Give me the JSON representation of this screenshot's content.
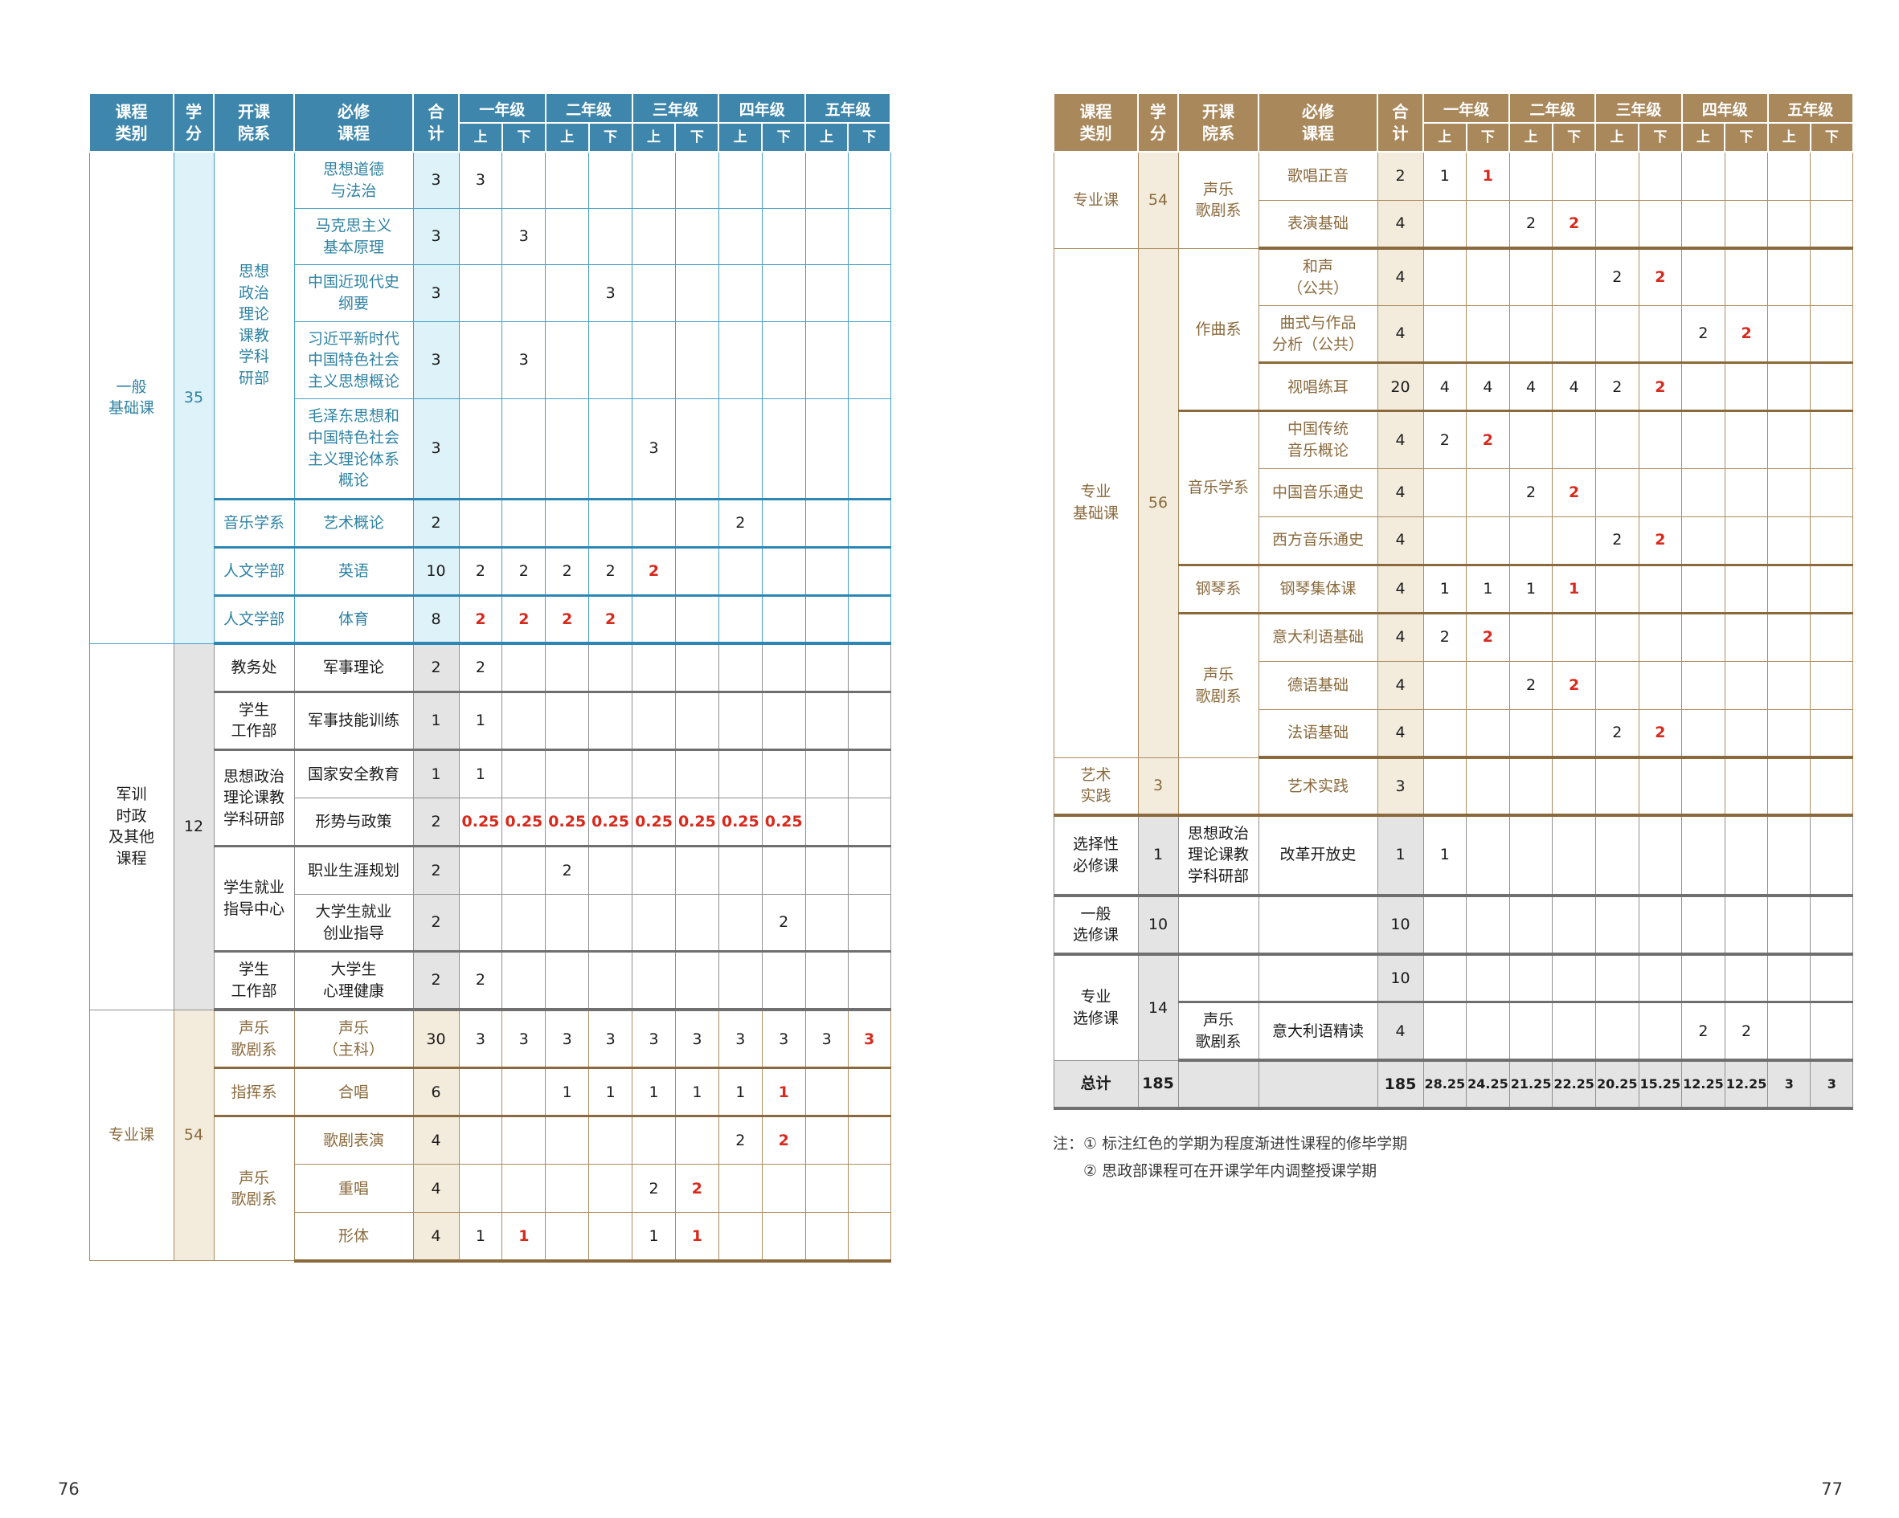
{
  "page": {
    "left_number": "76",
    "right_number": "77"
  },
  "colors": {
    "left_header_blue": "#3e86ac",
    "right_header_brown": "#a9885c",
    "progressive_red": "#d8291d",
    "cyan_tint": "#def2f9",
    "gray_tint": "#e4e4e4",
    "cream_tint": "#f3ecdc"
  },
  "header": {
    "col_category": "课程\n类别",
    "col_credits": "学\n分",
    "col_dept": "开课\n院系",
    "col_course": "必修\n课程",
    "col_total": "合\n计",
    "years": [
      "一年级",
      "二年级",
      "三年级",
      "四年级",
      "五年级"
    ],
    "sem_first": "上",
    "sem_second": "下"
  },
  "left_table": {
    "sections": [
      {
        "category": "一般\n基础课",
        "credits": "35",
        "theme": "cyan",
        "rows": [
          {
            "dept": "思想\n政治\n理论\n课教\n学科\n研部",
            "dept_rowspan": 5,
            "course": "思想道德\n与法治",
            "total": "3",
            "cells": [
              "3",
              "",
              "",
              "",
              "",
              "",
              "",
              "",
              "",
              ""
            ]
          },
          {
            "dept": null,
            "course": "马克思主义\n基本原理",
            "total": "3",
            "cells": [
              "",
              "3",
              "",
              "",
              "",
              "",
              "",
              "",
              "",
              ""
            ]
          },
          {
            "dept": null,
            "course": "中国近现代史\n纲要",
            "total": "3",
            "cells": [
              "",
              "",
              "",
              "3",
              "",
              "",
              "",
              "",
              "",
              ""
            ]
          },
          {
            "dept": null,
            "course": "习近平新时代\n中国特色社会\n主义思想概论",
            "total": "3",
            "cells": [
              "",
              "3",
              "",
              "",
              "",
              "",
              "",
              "",
              "",
              ""
            ]
          },
          {
            "dept": null,
            "course": "毛泽东思想和\n中国特色社会\n主义理论体系\n概论",
            "total": "3",
            "cells": [
              "",
              "",
              "",
              "",
              "3",
              "",
              "",
              "",
              "",
              ""
            ]
          },
          {
            "dept": "音乐学系",
            "course": "艺术概论",
            "total": "2",
            "cells": [
              "",
              "",
              "",
              "",
              "",
              "",
              "2",
              "",
              "",
              ""
            ],
            "sep": true
          },
          {
            "dept": "人文学部",
            "course": "英语",
            "total": "10",
            "cells": [
              "2",
              "2",
              "2",
              "2",
              "2*",
              "",
              "",
              "",
              "",
              ""
            ],
            "sep": true
          },
          {
            "dept": "人文学部",
            "course": "体育",
            "total": "8",
            "cells": [
              "2*",
              "2*",
              "2*",
              "2*",
              "",
              "",
              "",
              "",
              "",
              ""
            ],
            "sep": true
          }
        ]
      },
      {
        "category": "军训\n时政\n及其他\n课程",
        "credits": "12",
        "theme": "gray",
        "rows": [
          {
            "dept": "教务处",
            "course": "军事理论",
            "total": "2",
            "cells": [
              "2",
              "",
              "",
              "",
              "",
              "",
              "",
              "",
              "",
              ""
            ]
          },
          {
            "dept": "学生\n工作部",
            "course": "军事技能训练",
            "total": "1",
            "cells": [
              "1",
              "",
              "",
              "",
              "",
              "",
              "",
              "",
              "",
              ""
            ],
            "sep": true
          },
          {
            "dept": "思想政治\n理论课教\n学科研部",
            "dept_rowspan": 2,
            "course": "国家安全教育",
            "total": "1",
            "cells": [
              "1",
              "",
              "",
              "",
              "",
              "",
              "",
              "",
              "",
              ""
            ],
            "sep": true
          },
          {
            "dept": null,
            "course": "形势与政策",
            "total": "2",
            "cells": [
              "0.25*",
              "0.25*",
              "0.25*",
              "0.25*",
              "0.25*",
              "0.25*",
              "0.25*",
              "0.25*",
              "",
              ""
            ]
          },
          {
            "dept": "学生就业\n指导中心",
            "dept_rowspan": 2,
            "course": "职业生涯规划",
            "total": "2",
            "cells": [
              "",
              "",
              "2",
              "",
              "",
              "",
              "",
              "",
              "",
              ""
            ],
            "sep": true
          },
          {
            "dept": null,
            "course": "大学生就业\n创业指导",
            "total": "2",
            "cells": [
              "",
              "",
              "",
              "",
              "",
              "",
              "",
              "2",
              "",
              ""
            ]
          },
          {
            "dept": "学生\n工作部",
            "course": "大学生\n心理健康",
            "total": "2",
            "cells": [
              "2",
              "",
              "",
              "",
              "",
              "",
              "",
              "",
              "",
              ""
            ],
            "sep": true
          }
        ]
      },
      {
        "category": "专业课",
        "credits": "54",
        "theme": "cream",
        "rows": [
          {
            "dept": "声乐\n歌剧系",
            "course": "声乐\n（主科）",
            "total": "30",
            "cells": [
              "3",
              "3",
              "3",
              "3",
              "3",
              "3",
              "3",
              "3",
              "3",
              "3*"
            ]
          },
          {
            "dept": "指挥系",
            "course": "合唱",
            "total": "6",
            "cells": [
              "",
              "",
              "1",
              "1",
              "1",
              "1",
              "1",
              "1*",
              "",
              ""
            ],
            "sep": true
          },
          {
            "dept": "声乐\n歌剧系",
            "dept_rowspan": 3,
            "course": "歌剧表演",
            "total": "4",
            "cells": [
              "",
              "",
              "",
              "",
              "",
              "",
              "2",
              "2*",
              "",
              ""
            ],
            "sep": true
          },
          {
            "dept": null,
            "course": "重唱",
            "total": "4",
            "cells": [
              "",
              "",
              "",
              "",
              "2",
              "2*",
              "",
              "",
              "",
              ""
            ]
          },
          {
            "dept": null,
            "course": "形体",
            "total": "4",
            "cells": [
              "1",
              "1*",
              "",
              "",
              "1",
              "1*",
              "",
              "",
              "",
              ""
            ]
          }
        ]
      }
    ]
  },
  "right_table": {
    "sections": [
      {
        "category": "专业课",
        "credits": "54",
        "theme": "cream",
        "rows": [
          {
            "dept": "声乐\n歌剧系",
            "dept_rowspan": 2,
            "course": "歌唱正音",
            "total": "2",
            "cells": [
              "1",
              "1*",
              "",
              "",
              "",
              "",
              "",
              "",
              "",
              ""
            ]
          },
          {
            "dept": null,
            "course": "表演基础",
            "total": "4",
            "cells": [
              "",
              "",
              "2",
              "2*",
              "",
              "",
              "",
              "",
              "",
              ""
            ]
          }
        ]
      },
      {
        "category": "专业\n基础课",
        "credits": "56",
        "theme": "cream",
        "rows": [
          {
            "dept": "作曲系",
            "dept_rowspan": 3,
            "course": "和声\n（公共）",
            "total": "4",
            "cells": [
              "",
              "",
              "",
              "",
              "2",
              "2*",
              "",
              "",
              "",
              ""
            ]
          },
          {
            "dept": null,
            "course": "曲式与作品\n分析（公共）",
            "total": "4",
            "cells": [
              "",
              "",
              "",
              "",
              "",
              "",
              "2",
              "2*",
              "",
              ""
            ]
          },
          {
            "dept": null,
            "course": "视唱练耳",
            "total": "20",
            "cells": [
              "4",
              "4",
              "4",
              "4",
              "2",
              "2*",
              "",
              "",
              "",
              ""
            ],
            "sep": true
          },
          {
            "dept": "音乐学系",
            "dept_rowspan": 3,
            "course": "中国传统\n音乐概论",
            "total": "4",
            "cells": [
              "2",
              "2*",
              "",
              "",
              "",
              "",
              "",
              "",
              "",
              ""
            ],
            "sep": true
          },
          {
            "dept": null,
            "course": "中国音乐通史",
            "total": "4",
            "cells": [
              "",
              "",
              "2",
              "2*",
              "",
              "",
              "",
              "",
              "",
              ""
            ]
          },
          {
            "dept": null,
            "course": "西方音乐通史",
            "total": "4",
            "cells": [
              "",
              "",
              "",
              "",
              "2",
              "2*",
              "",
              "",
              "",
              ""
            ]
          },
          {
            "dept": "钢琴系",
            "course": "钢琴集体课",
            "total": "4",
            "cells": [
              "1",
              "1",
              "1",
              "1*",
              "",
              "",
              "",
              "",
              "",
              ""
            ],
            "sep": true
          },
          {
            "dept": "声乐\n歌剧系",
            "dept_rowspan": 3,
            "course": "意大利语基础",
            "total": "4",
            "cells": [
              "2",
              "2*",
              "",
              "",
              "",
              "",
              "",
              "",
              "",
              ""
            ],
            "sep": true
          },
          {
            "dept": null,
            "course": "德语基础",
            "total": "4",
            "cells": [
              "",
              "",
              "2",
              "2*",
              "",
              "",
              "",
              "",
              "",
              ""
            ]
          },
          {
            "dept": null,
            "course": "法语基础",
            "total": "4",
            "cells": [
              "",
              "",
              "",
              "",
              "2",
              "2*",
              "",
              "",
              "",
              ""
            ]
          }
        ]
      },
      {
        "category": "艺术\n实践",
        "credits": "3",
        "theme": "cream",
        "rows": [
          {
            "dept": "",
            "course": "艺术实践",
            "total": "3",
            "cells": [
              "",
              "",
              "",
              "",
              "",
              "",
              "",
              "",
              "",
              ""
            ]
          }
        ]
      },
      {
        "category": "选择性\n必修课",
        "credits": "1",
        "theme": "gray",
        "rows": [
          {
            "dept": "思想政治\n理论课教\n学科研部",
            "course": "改革开放史",
            "total": "1",
            "cells": [
              "1",
              "",
              "",
              "",
              "",
              "",
              "",
              "",
              "",
              ""
            ]
          }
        ]
      },
      {
        "category": "一般\n选修课",
        "credits": "10",
        "theme": "gray",
        "rows": [
          {
            "dept": "",
            "course": "",
            "total": "10",
            "cells": [
              "",
              "",
              "",
              "",
              "",
              "",
              "",
              "",
              "",
              ""
            ]
          }
        ]
      },
      {
        "category": "专业\n选修课",
        "credits": "14",
        "theme": "gray",
        "rows": [
          {
            "dept": "",
            "course": "",
            "total": "10",
            "cells": [
              "",
              "",
              "",
              "",
              "",
              "",
              "",
              "",
              "",
              ""
            ]
          },
          {
            "dept": "声乐\n歌剧系",
            "course": "意大利语精读",
            "total": "4",
            "cells": [
              "",
              "",
              "",
              "",
              "",
              "",
              "2",
              "2",
              "",
              ""
            ],
            "sep": true
          }
        ]
      },
      {
        "category": "总计",
        "credits": "185",
        "theme": "total",
        "rows": [
          {
            "dept": "",
            "course": "",
            "total": "185",
            "cells": [
              "28.25",
              "24.25",
              "21.25",
              "22.25",
              "20.25",
              "15.25",
              "12.25",
              "12.25",
              "3",
              "3"
            ]
          }
        ]
      }
    ]
  },
  "notes": {
    "prefix": "注：",
    "items": [
      "① 标注红色的学期为程度渐进性课程的修毕学期",
      "② 思政部课程可在开课学年内调整授课学期"
    ]
  }
}
